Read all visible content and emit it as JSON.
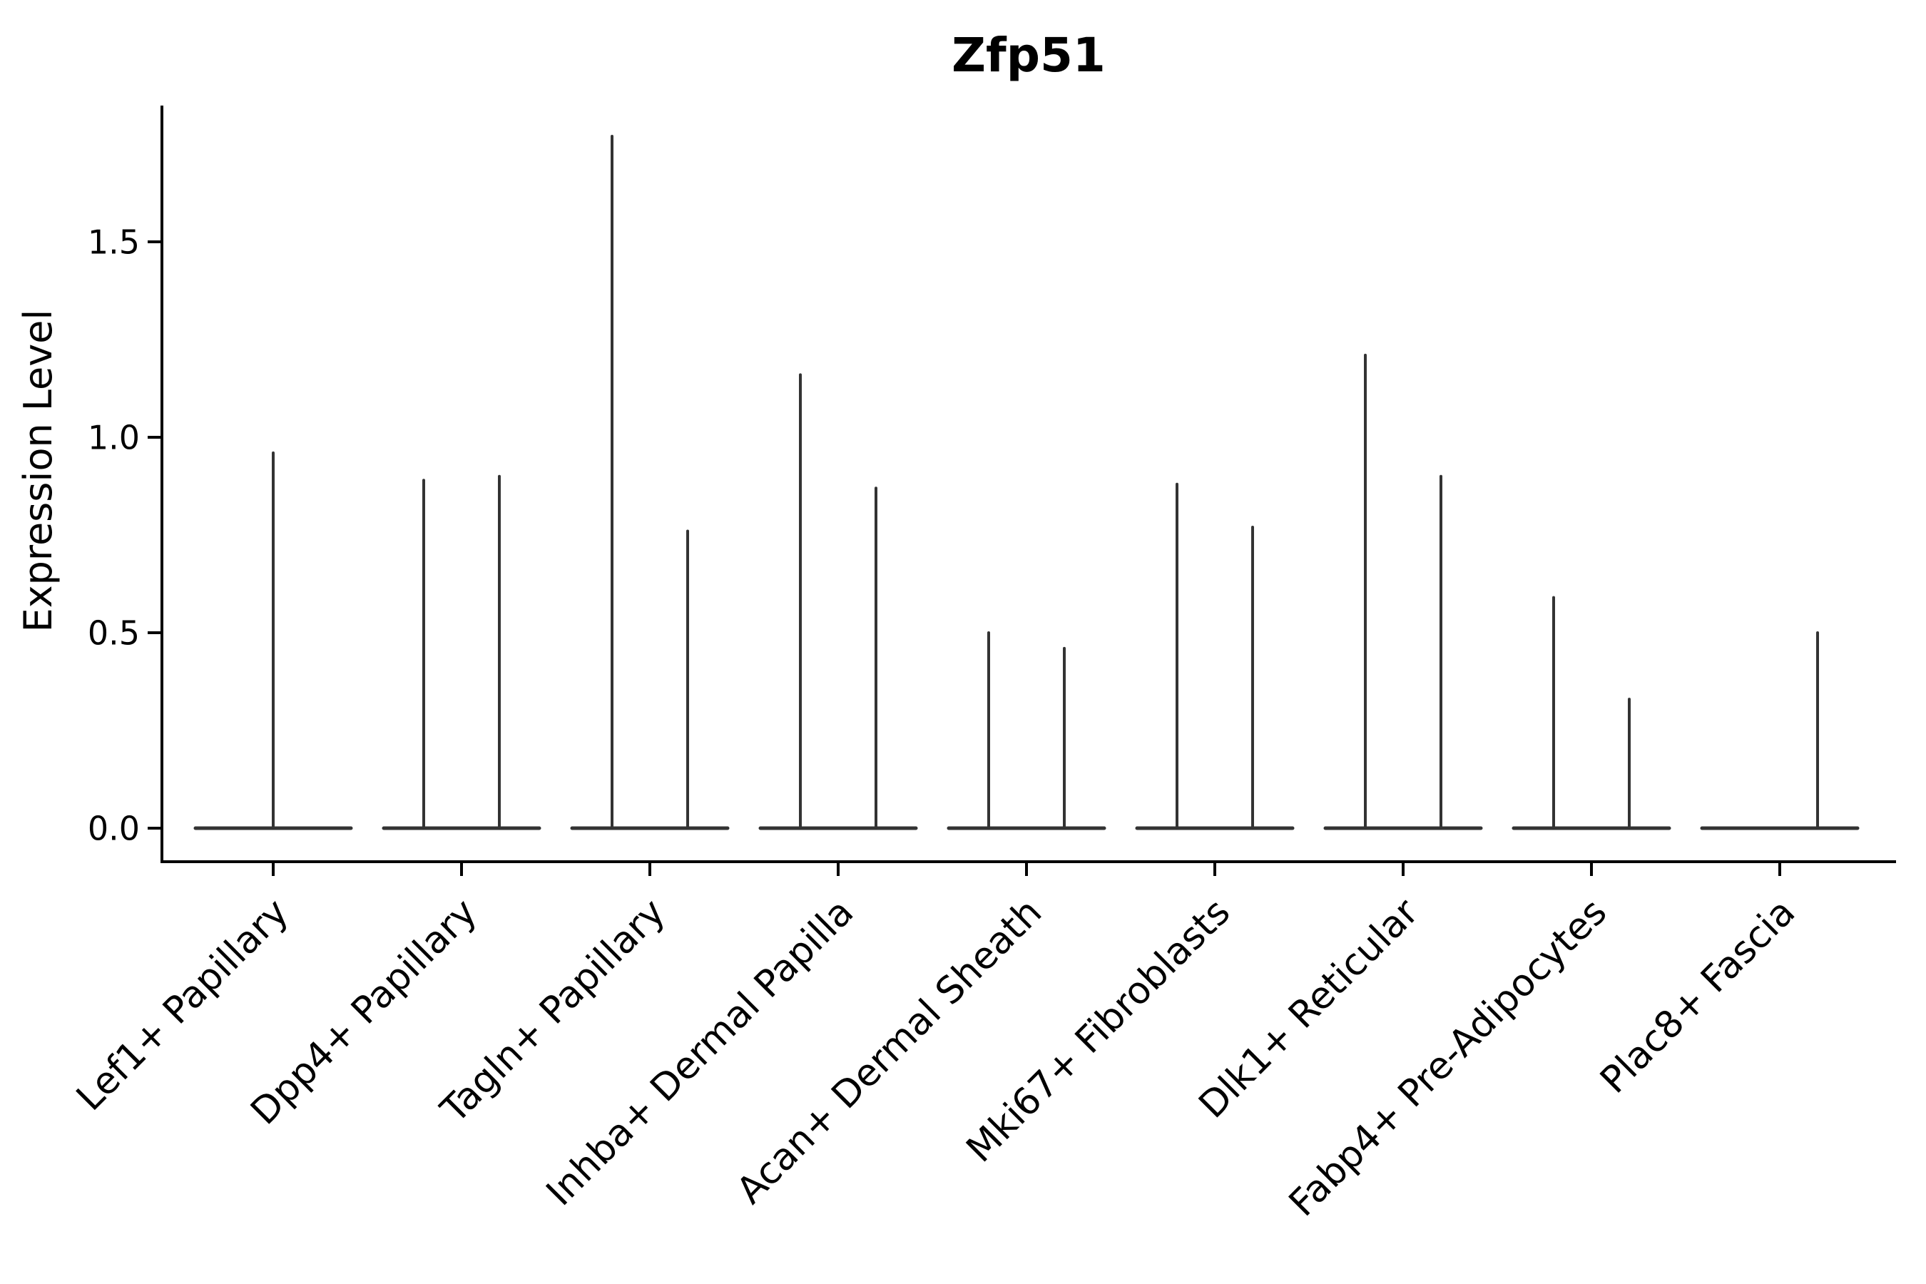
{
  "chart_data": {
    "type": "violin",
    "title": "Zfp51",
    "ylabel": "Expression Level",
    "xlabel": "",
    "grid": false,
    "legend": "none",
    "background_color": "#ffffff",
    "axis_color": "#000000",
    "text_color": "#000000",
    "violin_color": "#333333",
    "ylim": [
      -0.09,
      1.85
    ],
    "y_ticks": [
      0.0,
      0.5,
      1.0,
      1.5
    ],
    "y_tick_labels": [
      "0.0",
      "0.5",
      "1.0",
      "1.5"
    ],
    "x_tick_rotation_deg": 45,
    "categories": [
      "Lef1+ Papillary",
      "Dpp4+ Papillary",
      "Tagln+ Papillary",
      "Inhba+ Dermal Papilla",
      "Acan+ Dermal Sheath",
      "Mki67+ Fibroblasts",
      "Dlk1+ Reticular",
      "Fabp4+ Pre-Adipocytes",
      "Plac8+ Fascia"
    ],
    "series": [
      {
        "category": "Lef1+ Papillary",
        "violins": [
          {
            "position": "center",
            "max": 0.96
          }
        ]
      },
      {
        "category": "Dpp4+ Papillary",
        "violins": [
          {
            "position": "left",
            "max": 0.89
          },
          {
            "position": "right",
            "max": 0.9
          }
        ]
      },
      {
        "category": "Tagln+ Papillary",
        "violins": [
          {
            "position": "left",
            "max": 1.77
          },
          {
            "position": "right",
            "max": 0.76
          }
        ]
      },
      {
        "category": "Inhba+ Dermal Papilla",
        "violins": [
          {
            "position": "left",
            "max": 1.16
          },
          {
            "position": "right",
            "max": 0.87
          }
        ]
      },
      {
        "category": "Acan+ Dermal Sheath",
        "violins": [
          {
            "position": "left",
            "max": 0.5
          },
          {
            "position": "right",
            "max": 0.46
          }
        ]
      },
      {
        "category": "Mki67+ Fibroblasts",
        "violins": [
          {
            "position": "left",
            "max": 0.88
          },
          {
            "position": "right",
            "max": 0.77
          }
        ]
      },
      {
        "category": "Dlk1+ Reticular",
        "violins": [
          {
            "position": "left",
            "max": 1.21
          },
          {
            "position": "right",
            "max": 0.9
          }
        ]
      },
      {
        "category": "Fabp4+ Pre-Adipocytes",
        "violins": [
          {
            "position": "left",
            "max": 0.59
          },
          {
            "position": "right",
            "max": 0.33
          }
        ]
      },
      {
        "category": "Plac8+ Fascia",
        "violins": [
          {
            "position": "right",
            "max": 0.5
          }
        ]
      }
    ],
    "baseline_value": 0.0
  }
}
